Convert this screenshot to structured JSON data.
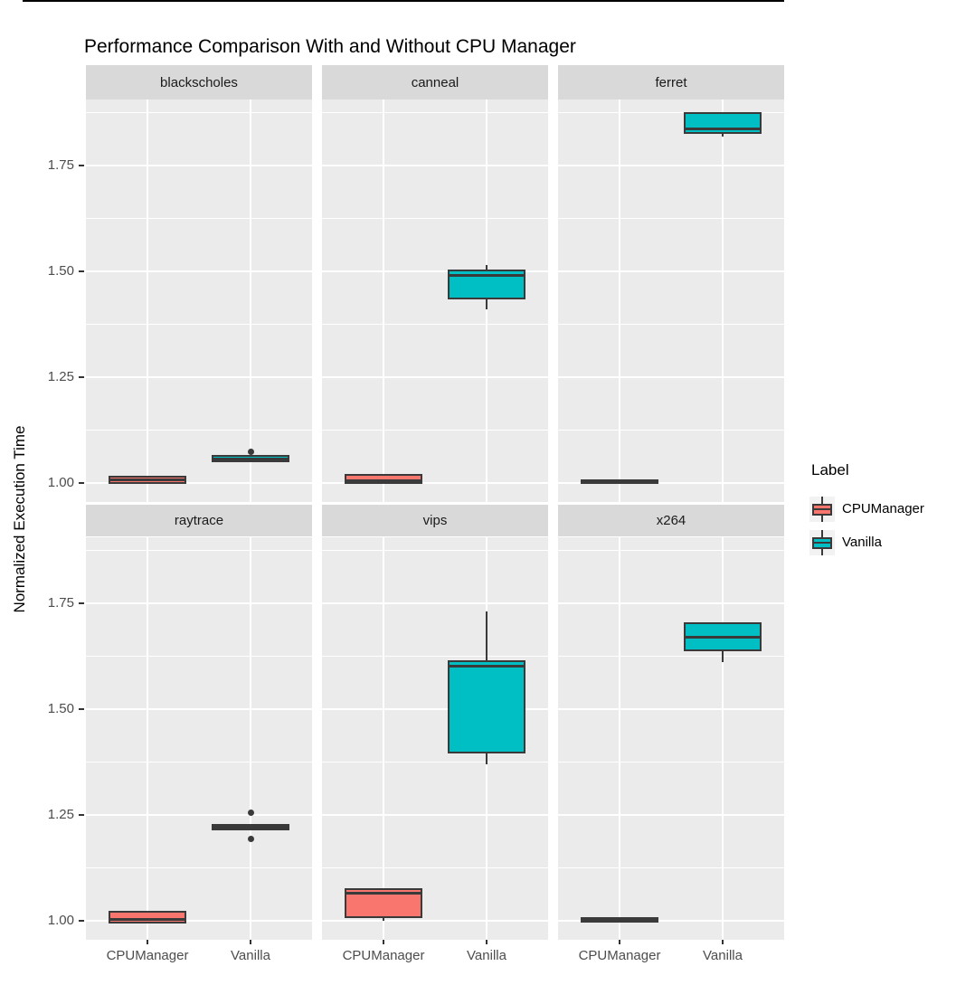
{
  "title": "Performance Comparison With and Without CPU Manager",
  "y_axis": {
    "label": "Normalized Execution Time",
    "tick_labels": [
      "1.00",
      "1.25",
      "1.50",
      "1.75"
    ]
  },
  "x_axis": {
    "categories": [
      "CPUManager",
      "Vanilla"
    ]
  },
  "legend": {
    "title": "Label",
    "entries": [
      {
        "label": "CPUManager",
        "color": "#F8766D"
      },
      {
        "label": "Vanilla",
        "color": "#00BFC4"
      }
    ]
  },
  "colors": {
    "panel_bg": "#EBEBEB",
    "strip_bg": "#D9D9D9",
    "gridline": "#FFFFFF",
    "box_border": "#3A3A3A",
    "tick_text": "#4D4D4D",
    "legend_key_bg": "#F2F2F2",
    "cpumanager_fill": "#F8766D",
    "vanilla_fill": "#00BFC4"
  },
  "chart_data": {
    "type": "boxplot",
    "title": "Performance Comparison With and Without CPU Manager",
    "xlabel": "",
    "ylabel": "Normalized Execution Time",
    "x_categories": [
      "CPUManager",
      "Vanilla"
    ],
    "y_ticks": [
      1.0,
      1.25,
      1.5,
      1.75
    ],
    "y_minor_ticks": [
      1.125,
      1.375,
      1.625,
      1.875
    ],
    "ylim": [
      0.955,
      1.905
    ],
    "grid": true,
    "legend_position": "right",
    "legend_title": "Label",
    "facet_layout": {
      "rows": 2,
      "cols": 3
    },
    "facets": [
      {
        "name": "blackscholes",
        "boxes": [
          {
            "group": "CPUManager",
            "min": 1.0,
            "q1": 1.003,
            "median": 1.007,
            "q3": 1.012,
            "max": 1.014,
            "outliers": []
          },
          {
            "group": "Vanilla",
            "min": 1.049,
            "q1": 1.053,
            "median": 1.057,
            "q3": 1.062,
            "max": 1.065,
            "outliers": [
              1.074
            ]
          }
        ]
      },
      {
        "name": "canneal",
        "boxes": [
          {
            "group": "CPUManager",
            "min": 1.0,
            "q1": 1.002,
            "median": 1.006,
            "q3": 1.016,
            "max": 1.018,
            "outliers": []
          },
          {
            "group": "Vanilla",
            "min": 1.41,
            "q1": 1.437,
            "median": 1.49,
            "q3": 1.5,
            "max": 1.515,
            "outliers": []
          }
        ]
      },
      {
        "name": "ferret",
        "boxes": [
          {
            "group": "CPUManager",
            "min": 0.999,
            "q1": 1.001,
            "median": 1.003,
            "q3": 1.005,
            "max": 1.007,
            "outliers": []
          },
          {
            "group": "Vanilla",
            "min": 1.818,
            "q1": 1.828,
            "median": 1.835,
            "q3": 1.87,
            "max": 1.87,
            "outliers": []
          }
        ]
      },
      {
        "name": "raytrace",
        "boxes": [
          {
            "group": "CPUManager",
            "min": 0.996,
            "q1": 0.998,
            "median": 1.003,
            "q3": 1.018,
            "max": 1.02,
            "outliers": []
          },
          {
            "group": "Vanilla",
            "min": 1.215,
            "q1": 1.217,
            "median": 1.22,
            "q3": 1.223,
            "max": 1.225,
            "outliers": [
              1.256,
              1.192
            ]
          }
        ]
      },
      {
        "name": "vips",
        "boxes": [
          {
            "group": "CPUManager",
            "min": 1.0,
            "q1": 1.011,
            "median": 1.066,
            "q3": 1.072,
            "max": 1.072,
            "outliers": []
          },
          {
            "group": "Vanilla",
            "min": 1.37,
            "q1": 1.4,
            "median": 1.6,
            "q3": 1.61,
            "max": 1.73,
            "outliers": []
          }
        ]
      },
      {
        "name": "x264",
        "boxes": [
          {
            "group": "CPUManager",
            "min": 0.997,
            "q1": 0.999,
            "median": 1.002,
            "q3": 1.005,
            "max": 1.006,
            "outliers": []
          },
          {
            "group": "Vanilla",
            "min": 1.61,
            "q1": 1.64,
            "median": 1.67,
            "q3": 1.7,
            "max": 1.7,
            "outliers": []
          }
        ]
      }
    ]
  }
}
